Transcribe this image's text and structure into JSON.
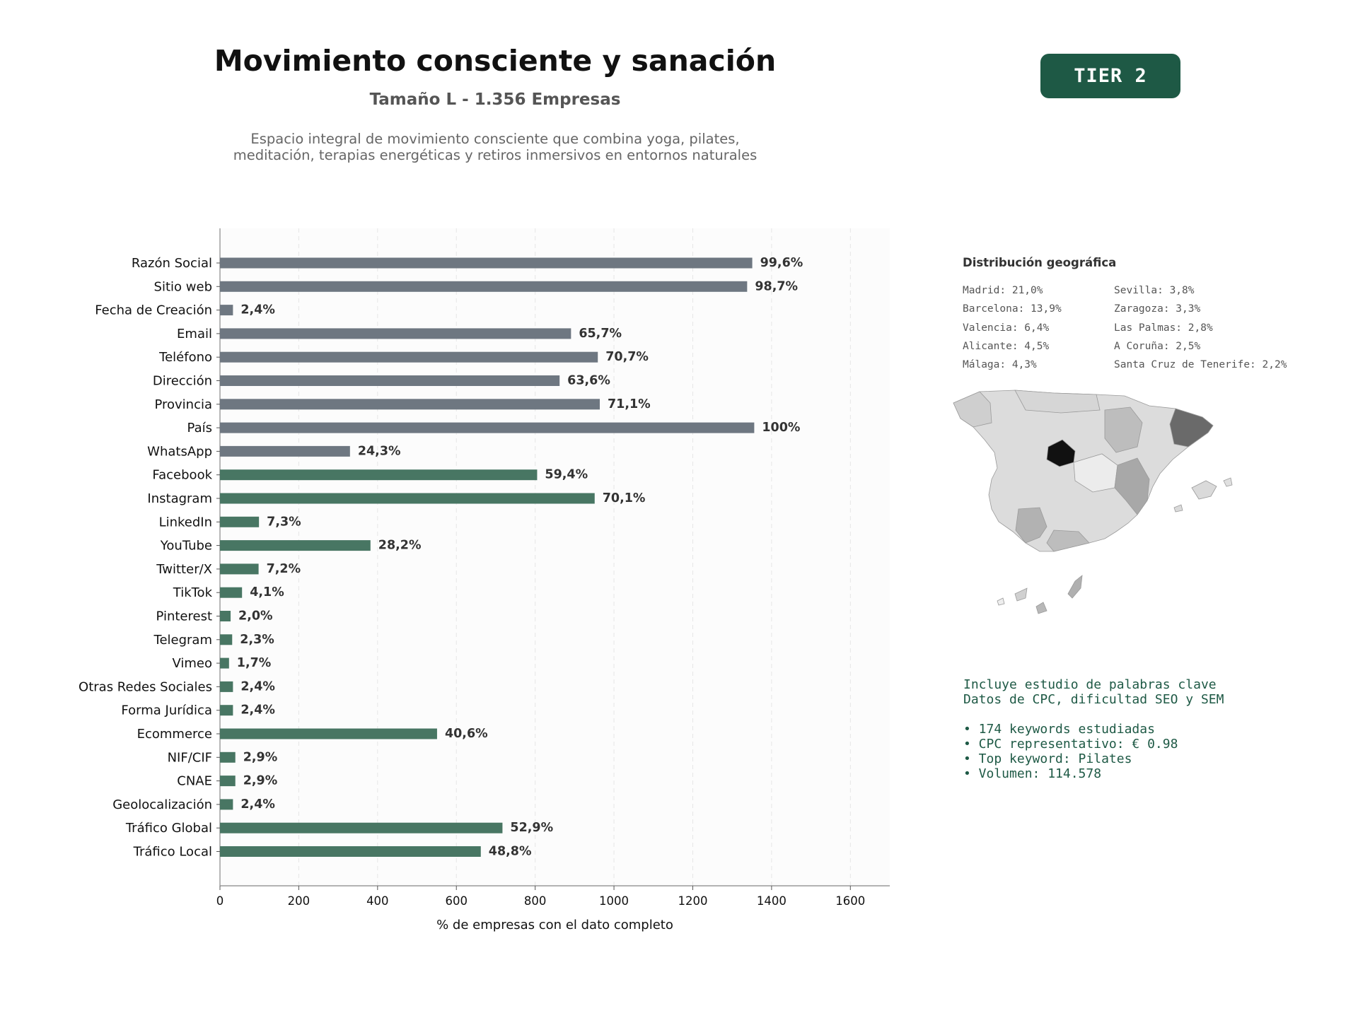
{
  "header": {
    "title": "Movimiento consciente y sanación",
    "subtitle": "Tamaño L - 1.356 Empresas",
    "description": "Espacio integral de movimiento consciente que combina yoga, pilates, meditación, terapias energéticas y retiros inmersivos en entornos naturales",
    "tier_badge": "TIER 2"
  },
  "chart_data": {
    "type": "bar",
    "orientation": "horizontal",
    "xlabel": "% de empresas con el dato completo",
    "ylabel": "",
    "xlim": [
      0,
      1700
    ],
    "xticks": [
      0,
      200,
      400,
      600,
      800,
      1000,
      1200,
      1400,
      1600
    ],
    "grid": "vertical dashed",
    "total_companies": 1356,
    "colors": {
      "contact": "#6e7781",
      "social": "#487663"
    },
    "categories": [
      "Razón Social",
      "Sitio web",
      "Fecha de Creación",
      "Email",
      "Teléfono",
      "Dirección",
      "Provincia",
      "País",
      "WhatsApp",
      "Facebook",
      "Instagram",
      "LinkedIn",
      "YouTube",
      "Twitter/X",
      "TikTok",
      "Pinterest",
      "Telegram",
      "Vimeo",
      "Otras Redes Sociales",
      "Forma Jurídica",
      "Ecommerce",
      "NIF/CIF",
      "CNAE",
      "Geolocalización",
      "Tráfico Global",
      "Tráfico Local"
    ],
    "values": [
      1351,
      1338,
      33,
      891,
      959,
      862,
      964,
      1356,
      330,
      805,
      951,
      99,
      382,
      98,
      56,
      27,
      31,
      23,
      33,
      33,
      551,
      39,
      39,
      33,
      717,
      662
    ],
    "labels": [
      "99,6%",
      "98,7%",
      "2,4%",
      "65,7%",
      "70,7%",
      "63,6%",
      "71,1%",
      "100%",
      "24,3%",
      "59,4%",
      "70,1%",
      "7,3%",
      "28,2%",
      "7,2%",
      "4,1%",
      "2,0%",
      "2,3%",
      "1,7%",
      "2,4%",
      "2,4%",
      "40,6%",
      "2,9%",
      "2,9%",
      "2,4%",
      "52,9%",
      "48,8%"
    ],
    "color_groups": [
      "contact",
      "contact",
      "contact",
      "contact",
      "contact",
      "contact",
      "contact",
      "contact",
      "contact",
      "social",
      "social",
      "social",
      "social",
      "social",
      "social",
      "social",
      "social",
      "social",
      "social",
      "social",
      "social",
      "social",
      "social",
      "social",
      "social",
      "social"
    ]
  },
  "geo": {
    "title": "Distribución geográfica",
    "col1": [
      "Madrid: 21,0%",
      "Barcelona: 13,9%",
      "Valencia: 6,4%",
      "Alicante: 4,5%",
      "Málaga: 4,3%"
    ],
    "col2": [
      "Sevilla: 3,8%",
      "Zaragoza: 3,3%",
      "Las Palmas: 2,8%",
      "A Coruña: 2,5%",
      "Santa Cruz de Tenerife: 2,2%"
    ]
  },
  "keywords": {
    "line1": "Incluye estudio de palabras clave",
    "line2": "Datos de CPC, dificultad SEO y SEM",
    "bullets": [
      "• 174 keywords estudiadas",
      "• CPC representativo: € 0.98",
      "• Top keyword: Pilates",
      "• Volumen: 114.578"
    ]
  }
}
